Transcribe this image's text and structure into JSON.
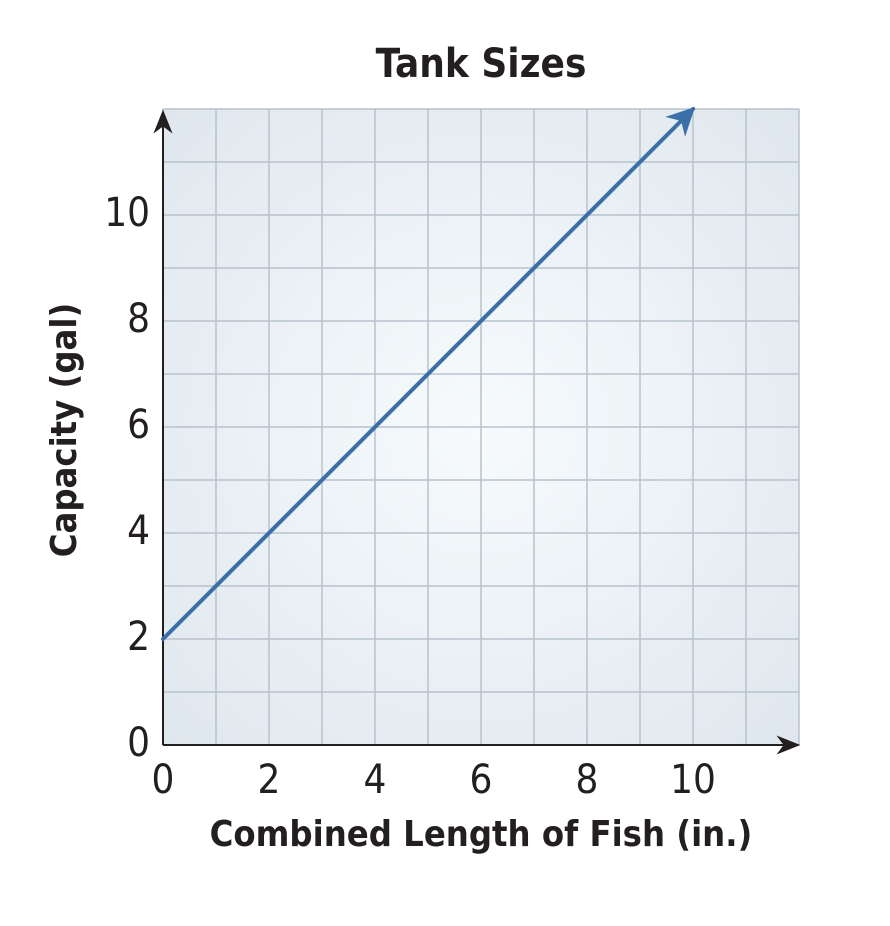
{
  "chart_data": {
    "type": "line",
    "title": "Tank Sizes",
    "x_label": "Combined Length of Fish (in.)",
    "y_label": "Capacity (gal)",
    "x": [
      0,
      10
    ],
    "series": [
      {
        "name": "Capacity",
        "color": "#3a6fa8",
        "values": [
          2,
          12
        ]
      }
    ],
    "xlim": [
      0,
      12
    ],
    "ylim": [
      0,
      12
    ],
    "xticks": [
      0,
      2,
      4,
      6,
      8,
      10
    ],
    "yticks": [
      0,
      2,
      4,
      6,
      8,
      10
    ],
    "xminorticks": [
      1,
      3,
      5,
      7,
      9,
      11,
      12
    ],
    "yminorticks": [
      1,
      3,
      5,
      7,
      9,
      11,
      12
    ],
    "grid": true,
    "legend": false,
    "arrow": true
  }
}
